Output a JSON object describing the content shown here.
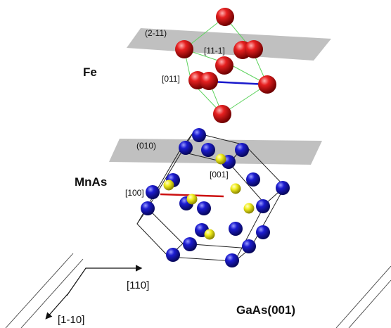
{
  "labels": {
    "fe": "Fe",
    "mnas": "MnAs",
    "substrate": "GaAs(001)",
    "plane_fe": "(2-11)",
    "dir_fe_a": "[11-1]",
    "dir_fe_b": "[011]",
    "plane_mnas": "(010)",
    "dir_mnas_a": "[001]",
    "dir_mnas_b": "[100]",
    "axis_a": "[110]",
    "axis_b": "[1-10]"
  },
  "colors": {
    "fe_atom": "#e10d0d",
    "mn_atom": "#1a1acc",
    "as_atom": "#f0ec1c",
    "plane": "#b5b5b5",
    "fe_cell_edge": "#5fd35f",
    "mnas_cell_edge": "#222222",
    "fe_direction": "#1a1acc",
    "mnas_direction": "#cc1111"
  }
}
